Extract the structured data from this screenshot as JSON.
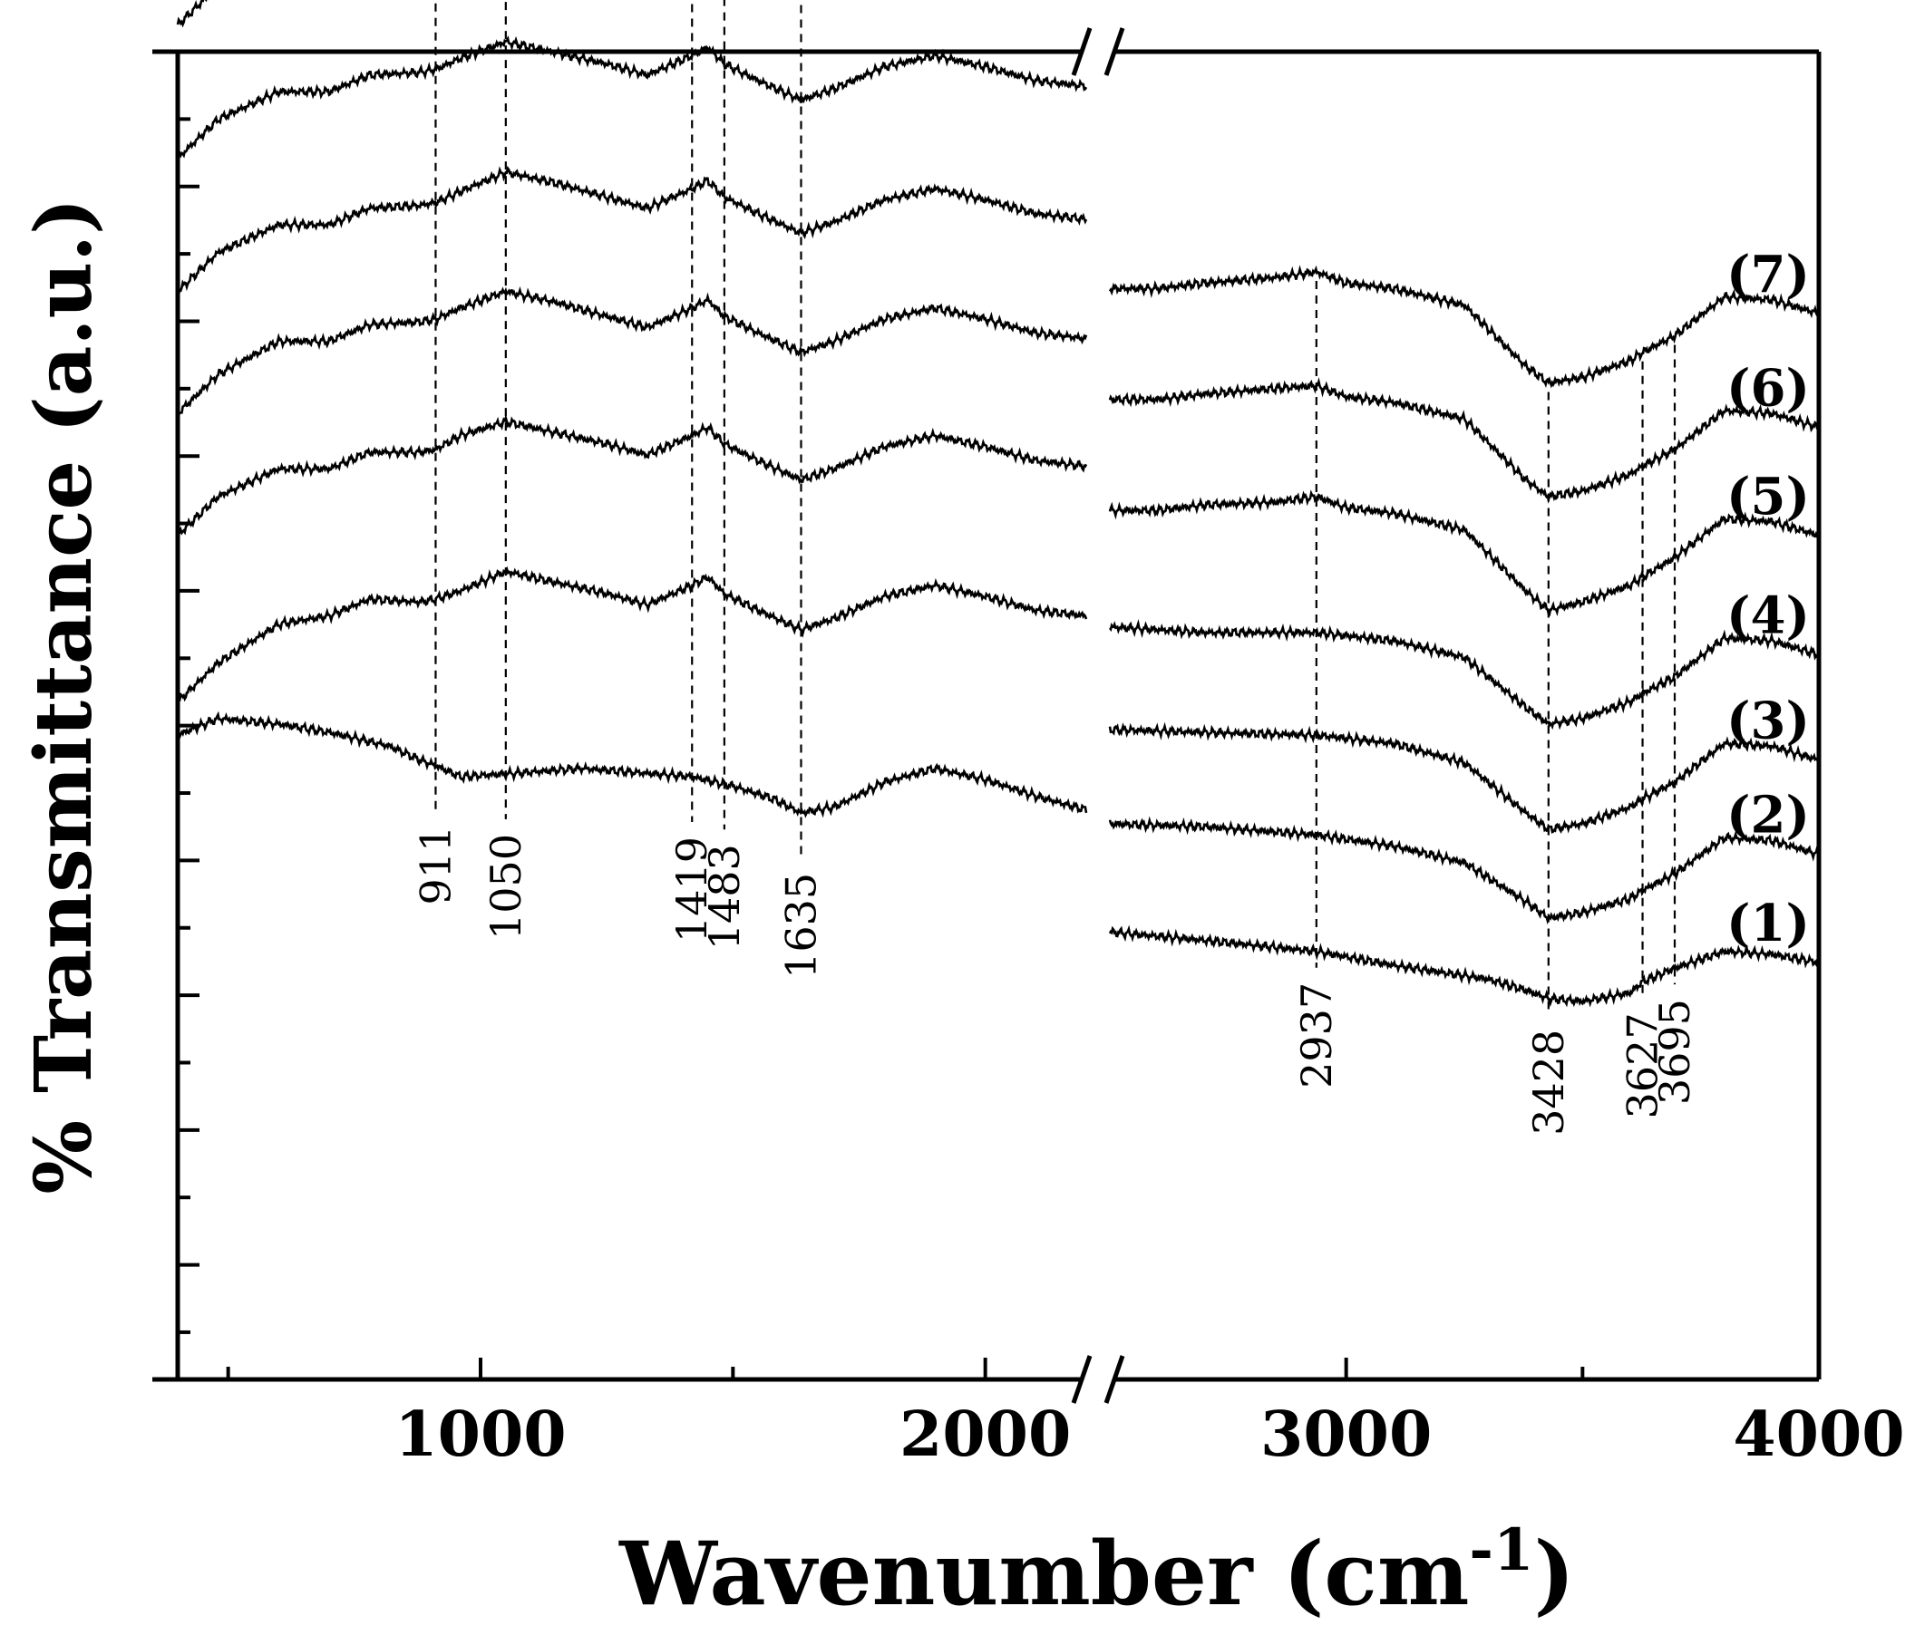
{
  "chart_data": {
    "type": "line",
    "title": "",
    "xlabel": "Wavenumber (cm",
    "xlabel_sup": "-1",
    "xlabel_close": ")",
    "ylabel": "% Transmittance (a.u.)",
    "x_segments": [
      [
        400,
        2200
      ],
      [
        2500,
        4000
      ]
    ],
    "axis_break_marker": "//",
    "x_ticks": [
      1000,
      2000,
      3000,
      4000
    ],
    "x_tick_labels": [
      "1000",
      "2000",
      "3000",
      "4000"
    ],
    "y_tick_labels_shown": false,
    "grid": false,
    "peak_markers": [
      {
        "x": 911,
        "label": "911"
      },
      {
        "x": 1050,
        "label": "1050"
      },
      {
        "x": 1419,
        "label": "1419"
      },
      {
        "x": 1483,
        "label": "1483"
      },
      {
        "x": 1635,
        "label": "1635"
      },
      {
        "x": 2937,
        "label": "2937"
      },
      {
        "x": 3428,
        "label": "3428"
      },
      {
        "x": 3627,
        "label": "3627"
      },
      {
        "x": 3695,
        "label": "3695"
      }
    ],
    "series": [
      {
        "name": "(1)",
        "low": [
          [
            400,
            0.66
          ],
          [
            480,
            0.69
          ],
          [
            600,
            0.68
          ],
          [
            700,
            0.665
          ],
          [
            820,
            0.64
          ],
          [
            880,
            0.615
          ],
          [
            911,
            0.605
          ],
          [
            960,
            0.585
          ],
          [
            1050,
            0.59
          ],
          [
            1200,
            0.6
          ],
          [
            1419,
            0.585
          ],
          [
            1500,
            0.568
          ],
          [
            1580,
            0.545
          ],
          [
            1635,
            0.52
          ],
          [
            1700,
            0.53
          ],
          [
            1800,
            0.575
          ],
          [
            1900,
            0.6
          ],
          [
            2000,
            0.58
          ],
          [
            2100,
            0.55
          ],
          [
            2200,
            0.525
          ]
        ],
        "high": [
          [
            2500,
            0.305
          ],
          [
            2700,
            0.29
          ],
          [
            2937,
            0.27
          ],
          [
            3100,
            0.245
          ],
          [
            3300,
            0.22
          ],
          [
            3380,
            0.2
          ],
          [
            3428,
            0.185
          ],
          [
            3500,
            0.18
          ],
          [
            3600,
            0.195
          ],
          [
            3627,
            0.215
          ],
          [
            3695,
            0.24
          ],
          [
            3800,
            0.27
          ],
          [
            3900,
            0.265
          ],
          [
            4000,
            0.25
          ]
        ]
      },
      {
        "name": "(2)",
        "low": [
          [
            400,
            0.72
          ],
          [
            480,
            0.79
          ],
          [
            600,
            0.86
          ],
          [
            700,
            0.875
          ],
          [
            780,
            0.905
          ],
          [
            880,
            0.9
          ],
          [
            911,
            0.905
          ],
          [
            960,
            0.92
          ],
          [
            1050,
            0.955
          ],
          [
            1150,
            0.935
          ],
          [
            1250,
            0.915
          ],
          [
            1330,
            0.895
          ],
          [
            1419,
            0.93
          ],
          [
            1450,
            0.945
          ],
          [
            1483,
            0.915
          ],
          [
            1550,
            0.885
          ],
          [
            1635,
            0.85
          ],
          [
            1700,
            0.87
          ],
          [
            1800,
            0.91
          ],
          [
            1900,
            0.93
          ],
          [
            2000,
            0.91
          ],
          [
            2100,
            0.885
          ],
          [
            2200,
            0.875
          ]
        ],
        "high": [
          [
            2500,
            0.5
          ],
          [
            2700,
            0.495
          ],
          [
            2937,
            0.48
          ],
          [
            3100,
            0.46
          ],
          [
            3250,
            0.43
          ],
          [
            3380,
            0.36
          ],
          [
            3428,
            0.33
          ],
          [
            3500,
            0.34
          ],
          [
            3600,
            0.365
          ],
          [
            3627,
            0.38
          ],
          [
            3695,
            0.41
          ],
          [
            3800,
            0.475
          ],
          [
            3900,
            0.47
          ],
          [
            4000,
            0.445
          ]
        ]
      },
      {
        "name": "(3)",
        "low": [
          [
            400,
            1.02
          ],
          [
            480,
            1.09
          ],
          [
            600,
            1.14
          ],
          [
            700,
            1.14
          ],
          [
            780,
            1.17
          ],
          [
            880,
            1.17
          ],
          [
            911,
            1.175
          ],
          [
            960,
            1.2
          ],
          [
            1050,
            1.225
          ],
          [
            1150,
            1.205
          ],
          [
            1250,
            1.185
          ],
          [
            1330,
            1.165
          ],
          [
            1419,
            1.2
          ],
          [
            1450,
            1.215
          ],
          [
            1483,
            1.185
          ],
          [
            1550,
            1.155
          ],
          [
            1635,
            1.12
          ],
          [
            1700,
            1.14
          ],
          [
            1800,
            1.18
          ],
          [
            1900,
            1.2
          ],
          [
            2000,
            1.18
          ],
          [
            2100,
            1.155
          ],
          [
            2200,
            1.145
          ]
        ],
        "high": [
          [
            2500,
            0.67
          ],
          [
            2700,
            0.665
          ],
          [
            2937,
            0.66
          ],
          [
            3100,
            0.645
          ],
          [
            3250,
            0.61
          ],
          [
            3380,
            0.52
          ],
          [
            3428,
            0.49
          ],
          [
            3500,
            0.5
          ],
          [
            3600,
            0.53
          ],
          [
            3627,
            0.545
          ],
          [
            3695,
            0.575
          ],
          [
            3800,
            0.645
          ],
          [
            3900,
            0.64
          ],
          [
            4000,
            0.615
          ]
        ]
      },
      {
        "name": "(4)",
        "low": [
          [
            400,
            1.24
          ],
          [
            480,
            1.31
          ],
          [
            600,
            1.37
          ],
          [
            700,
            1.37
          ],
          [
            780,
            1.4
          ],
          [
            880,
            1.405
          ],
          [
            911,
            1.41
          ],
          [
            960,
            1.43
          ],
          [
            1050,
            1.46
          ],
          [
            1150,
            1.44
          ],
          [
            1250,
            1.415
          ],
          [
            1330,
            1.395
          ],
          [
            1419,
            1.43
          ],
          [
            1450,
            1.445
          ],
          [
            1483,
            1.415
          ],
          [
            1550,
            1.385
          ],
          [
            1635,
            1.35
          ],
          [
            1700,
            1.37
          ],
          [
            1800,
            1.41
          ],
          [
            1900,
            1.43
          ],
          [
            2000,
            1.41
          ],
          [
            2100,
            1.385
          ],
          [
            2200,
            1.375
          ]
        ],
        "high": [
          [
            2500,
            0.855
          ],
          [
            2700,
            0.845
          ],
          [
            2937,
            0.845
          ],
          [
            3100,
            0.83
          ],
          [
            3250,
            0.8
          ],
          [
            3380,
            0.71
          ],
          [
            3428,
            0.68
          ],
          [
            3500,
            0.69
          ],
          [
            3600,
            0.72
          ],
          [
            3627,
            0.735
          ],
          [
            3695,
            0.765
          ],
          [
            3800,
            0.835
          ],
          [
            3900,
            0.83
          ],
          [
            4000,
            0.805
          ]
        ]
      },
      {
        "name": "(5)",
        "low": [
          [
            400,
            1.46
          ],
          [
            480,
            1.53
          ],
          [
            600,
            1.58
          ],
          [
            700,
            1.58
          ],
          [
            780,
            1.61
          ],
          [
            880,
            1.615
          ],
          [
            911,
            1.62
          ],
          [
            960,
            1.64
          ],
          [
            1050,
            1.675
          ],
          [
            1150,
            1.655
          ],
          [
            1250,
            1.63
          ],
          [
            1330,
            1.61
          ],
          [
            1419,
            1.645
          ],
          [
            1450,
            1.66
          ],
          [
            1483,
            1.63
          ],
          [
            1550,
            1.6
          ],
          [
            1635,
            1.565
          ],
          [
            1700,
            1.585
          ],
          [
            1800,
            1.625
          ],
          [
            1900,
            1.645
          ],
          [
            2000,
            1.625
          ],
          [
            2100,
            1.6
          ],
          [
            2200,
            1.59
          ]
        ],
        "high": [
          [
            2500,
            1.065
          ],
          [
            2600,
            1.065
          ],
          [
            2700,
            1.075
          ],
          [
            2850,
            1.08
          ],
          [
            2937,
            1.09
          ],
          [
            3000,
            1.07
          ],
          [
            3100,
            1.06
          ],
          [
            3250,
            1.03
          ],
          [
            3380,
            0.92
          ],
          [
            3428,
            0.885
          ],
          [
            3500,
            0.9
          ],
          [
            3600,
            0.93
          ],
          [
            3627,
            0.945
          ],
          [
            3695,
            0.98
          ],
          [
            3800,
            1.05
          ],
          [
            3900,
            1.045
          ],
          [
            4000,
            1.02
          ]
        ]
      },
      {
        "name": "(6)",
        "low": [
          [
            400,
            1.7
          ],
          [
            480,
            1.77
          ],
          [
            600,
            1.82
          ],
          [
            700,
            1.82
          ],
          [
            780,
            1.85
          ],
          [
            880,
            1.855
          ],
          [
            911,
            1.86
          ],
          [
            960,
            1.88
          ],
          [
            1050,
            1.91
          ],
          [
            1150,
            1.89
          ],
          [
            1250,
            1.87
          ],
          [
            1330,
            1.85
          ],
          [
            1419,
            1.885
          ],
          [
            1450,
            1.9
          ],
          [
            1483,
            1.87
          ],
          [
            1550,
            1.84
          ],
          [
            1635,
            1.805
          ],
          [
            1700,
            1.825
          ],
          [
            1800,
            1.865
          ],
          [
            1900,
            1.885
          ],
          [
            2000,
            1.865
          ],
          [
            2100,
            1.84
          ],
          [
            2200,
            1.83
          ]
        ],
        "high": [
          [
            2500,
            1.265
          ],
          [
            2600,
            1.265
          ],
          [
            2700,
            1.275
          ],
          [
            2850,
            1.285
          ],
          [
            2937,
            1.29
          ],
          [
            3000,
            1.27
          ],
          [
            3100,
            1.26
          ],
          [
            3250,
            1.23
          ],
          [
            3380,
            1.12
          ],
          [
            3428,
            1.09
          ],
          [
            3500,
            1.1
          ],
          [
            3600,
            1.13
          ],
          [
            3627,
            1.145
          ],
          [
            3695,
            1.175
          ],
          [
            3800,
            1.245
          ],
          [
            3900,
            1.24
          ],
          [
            4000,
            1.215
          ]
        ]
      },
      {
        "name": "(7)",
        "low": [
          [
            400,
            1.94
          ],
          [
            480,
            2.01
          ],
          [
            600,
            2.06
          ],
          [
            700,
            2.06
          ],
          [
            780,
            2.09
          ],
          [
            880,
            2.095
          ],
          [
            911,
            2.1
          ],
          [
            960,
            2.12
          ],
          [
            1050,
            2.155
          ],
          [
            1150,
            2.135
          ],
          [
            1250,
            2.11
          ],
          [
            1330,
            2.09
          ],
          [
            1419,
            2.125
          ],
          [
            1450,
            2.14
          ],
          [
            1483,
            2.11
          ],
          [
            1550,
            2.08
          ],
          [
            1635,
            2.045
          ],
          [
            1700,
            2.065
          ],
          [
            1800,
            2.105
          ],
          [
            1900,
            2.125
          ],
          [
            2000,
            2.105
          ],
          [
            2100,
            2.08
          ],
          [
            2200,
            2.07
          ]
        ],
        "high": [
          [
            2500,
            1.465
          ],
          [
            2600,
            1.465
          ],
          [
            2700,
            1.475
          ],
          [
            2850,
            1.485
          ],
          [
            2937,
            1.495
          ],
          [
            3000,
            1.475
          ],
          [
            3100,
            1.465
          ],
          [
            3250,
            1.435
          ],
          [
            3380,
            1.325
          ],
          [
            3428,
            1.295
          ],
          [
            3500,
            1.305
          ],
          [
            3600,
            1.335
          ],
          [
            3627,
            1.35
          ],
          [
            3695,
            1.38
          ],
          [
            3800,
            1.45
          ],
          [
            3900,
            1.445
          ],
          [
            4000,
            1.42
          ]
        ]
      }
    ]
  }
}
